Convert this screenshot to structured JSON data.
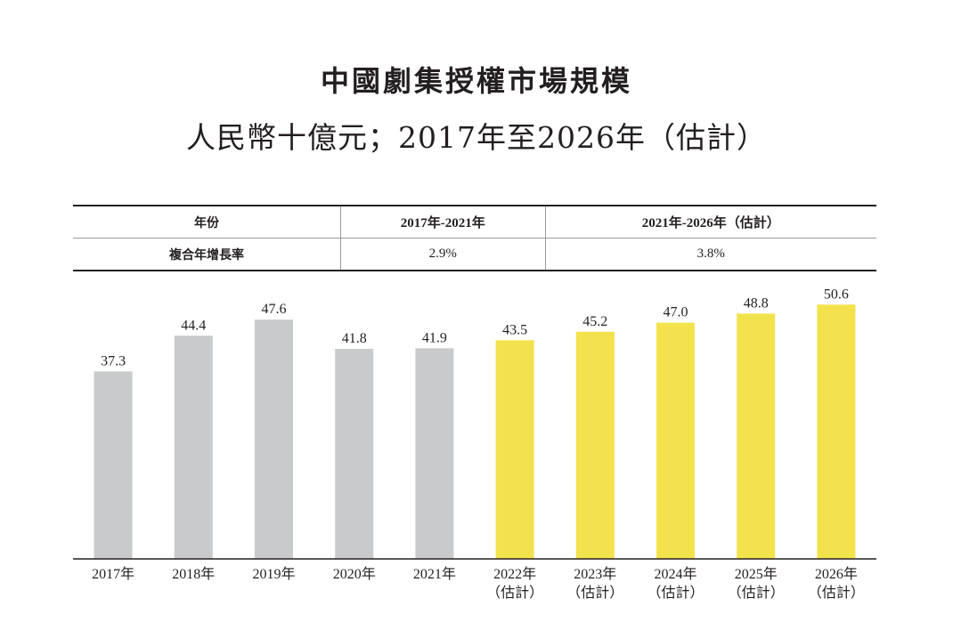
{
  "title": "中國劇集授權市場規模",
  "subtitle": "人民幣十億元；2017年至2026年（估計）",
  "cagr_table": {
    "header": [
      "年份",
      "2017年-2021年",
      "2021年-2026年（估計）"
    ],
    "row": [
      "複合年增長率",
      "2.9%",
      "3.8%"
    ]
  },
  "colors": {
    "historical": "#c8cacb",
    "forecast": "#f4e24c"
  },
  "chart_data": {
    "type": "bar",
    "title": "中國劇集授權市場規模",
    "subtitle": "人民幣十億元；2017年至2026年（估計）",
    "categories": [
      "2017年",
      "2018年",
      "2019年",
      "2020年",
      "2021年",
      "2022年",
      "2023年",
      "2024年",
      "2025年",
      "2026年"
    ],
    "category_notes": [
      "",
      "",
      "",
      "",
      "",
      "（估計）",
      "（估計）",
      "（估計）",
      "（估計）",
      "（估計）"
    ],
    "values": [
      37.3,
      44.4,
      47.6,
      41.8,
      41.9,
      43.5,
      45.2,
      47.0,
      48.8,
      50.6
    ],
    "value_labels": [
      "37.3",
      "44.4",
      "47.6",
      "41.8",
      "41.9",
      "43.5",
      "45.2",
      "47.0",
      "48.8",
      "50.6"
    ],
    "bar_colors": [
      "#c8cacb",
      "#c8cacb",
      "#c8cacb",
      "#c8cacb",
      "#c8cacb",
      "#f4e24c",
      "#f4e24c",
      "#f4e24c",
      "#f4e24c",
      "#f4e24c"
    ],
    "xlabel": "",
    "ylabel": "",
    "ylim": [
      0,
      51
    ],
    "grid": false,
    "legend": "none"
  }
}
